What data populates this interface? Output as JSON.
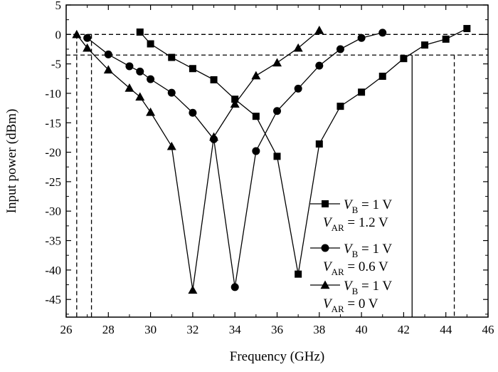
{
  "chart_data": {
    "type": "line",
    "xlabel": "Frequency (GHz)",
    "ylabel": "Input power (dBm)",
    "xlim": [
      26,
      46
    ],
    "ylim": [
      -48,
      5
    ],
    "xticks": [
      "26",
      "28",
      "30",
      "32",
      "34",
      "36",
      "38",
      "40",
      "42",
      "44",
      "46"
    ],
    "yticks": [
      "5",
      "0",
      "-5",
      "-10",
      "-15",
      "-20",
      "-25",
      "-30",
      "-35",
      "-40",
      "-45"
    ],
    "grid": false,
    "legend_position": "bottom-right",
    "series": [
      {
        "marker": "square",
        "legend": {
          "v_label": "V",
          "v_sub": "B",
          "v_value": " = 1 V",
          "var_label": "V",
          "var_sub": "AR",
          "var_value": " = 1.2 V"
        },
        "x": [
          29.5,
          30,
          31,
          32,
          33,
          34,
          35,
          36,
          37,
          38,
          39,
          40,
          41,
          42,
          43,
          44,
          45
        ],
        "y": [
          0.4,
          -1.6,
          -3.9,
          -5.8,
          -7.7,
          -11.0,
          -13.9,
          -20.7,
          -40.7,
          -18.6,
          -12.2,
          -9.8,
          -7.1,
          -4.1,
          -1.8,
          -0.8,
          1.0
        ]
      },
      {
        "marker": "circle",
        "legend": {
          "v_label": "V",
          "v_sub": "B",
          "v_value": " = 1 V",
          "var_label": "V",
          "var_sub": "AR",
          "var_value": " = 0.6 V"
        },
        "x": [
          27,
          28,
          29,
          29.5,
          30,
          31,
          32,
          33,
          34,
          35,
          36,
          37,
          38,
          39,
          40,
          41
        ],
        "y": [
          -0.6,
          -3.4,
          -5.4,
          -6.3,
          -7.6,
          -9.9,
          -13.3,
          -17.8,
          -42.9,
          -19.8,
          -13.0,
          -9.2,
          -5.3,
          -2.5,
          -0.6,
          0.3
        ]
      },
      {
        "marker": "triangle",
        "legend": {
          "v_label": "V",
          "v_sub": "B",
          "v_value": " = 1 V",
          "var_label": "V",
          "var_sub": "AR",
          "var_value": " = 0 V"
        },
        "x": [
          26.5,
          27,
          28,
          29,
          29.5,
          30,
          31,
          32,
          33,
          34,
          35,
          36,
          37,
          38
        ],
        "y": [
          0,
          -2.3,
          -6.0,
          -9.1,
          -10.6,
          -13.2,
          -19.0,
          -43.4,
          -17.4,
          -11.8,
          -7.0,
          -4.8,
          -2.3,
          0.7
        ]
      }
    ],
    "reference_lines": {
      "horizontal": [
        0,
        -3.5
      ],
      "vertical": [
        26.5,
        27.2,
        42.4,
        44.4
      ]
    }
  }
}
